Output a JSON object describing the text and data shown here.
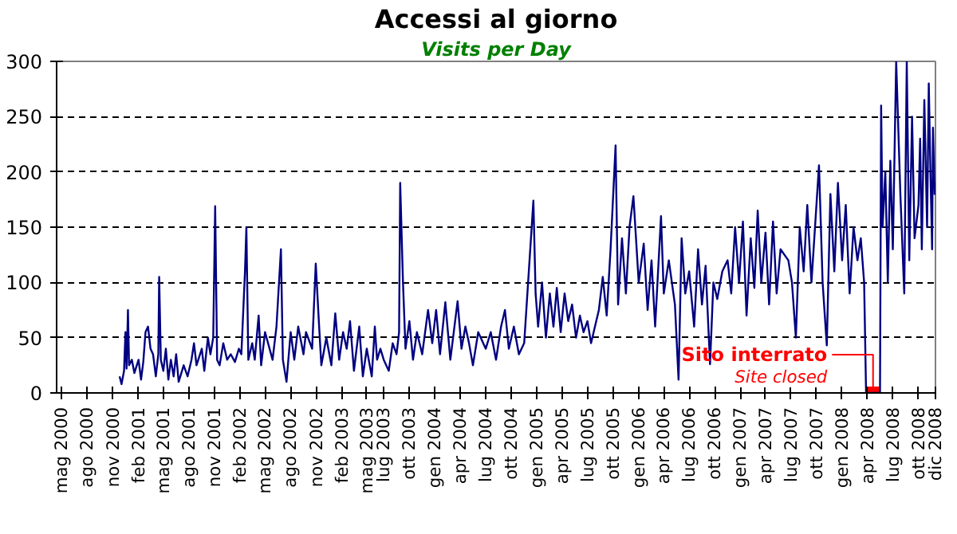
{
  "chart_data": {
    "type": "line",
    "title": "Accessi al giorno",
    "subtitle": "Visits per Day",
    "xlim": [
      "2000-04-13",
      "2008-12-01"
    ],
    "ylim": [
      0,
      300
    ],
    "yticks": [
      0,
      50,
      100,
      150,
      200,
      250,
      300
    ],
    "xticks": [
      {
        "value": "2000-05-01",
        "label": "mag 2000"
      },
      {
        "value": "2000-08-01",
        "label": "ago 2000"
      },
      {
        "value": "2000-11-01",
        "label": "nov 2000"
      },
      {
        "value": "2001-02-01",
        "label": "feb 2001"
      },
      {
        "value": "2001-05-01",
        "label": "mag 2001"
      },
      {
        "value": "2001-08-01",
        "label": "ago 2001"
      },
      {
        "value": "2001-11-01",
        "label": "nov 2001"
      },
      {
        "value": "2002-02-01",
        "label": "feb 2002"
      },
      {
        "value": "2002-05-01",
        "label": "mag 2002"
      },
      {
        "value": "2002-08-01",
        "label": "ago 2002"
      },
      {
        "value": "2002-11-01",
        "label": "nov 2002"
      },
      {
        "value": "2003-02-01",
        "label": "feb 2003"
      },
      {
        "value": "2003-05-01",
        "label": "mag 2003"
      },
      {
        "value": "2003-07-01",
        "label": "lug 2003"
      },
      {
        "value": "2003-10-01",
        "label": "ott 2003"
      },
      {
        "value": "2004-01-01",
        "label": "gen 2004"
      },
      {
        "value": "2004-04-01",
        "label": "apr 2004"
      },
      {
        "value": "2004-07-01",
        "label": "lug 2004"
      },
      {
        "value": "2004-10-01",
        "label": "ott 2004"
      },
      {
        "value": "2005-01-01",
        "label": "gen 2005"
      },
      {
        "value": "2005-04-01",
        "label": "apr 2005"
      },
      {
        "value": "2005-07-01",
        "label": "lug 2005"
      },
      {
        "value": "2005-10-01",
        "label": "ott 2005"
      },
      {
        "value": "2006-01-01",
        "label": "gen 2006"
      },
      {
        "value": "2006-04-01",
        "label": "apr 2006"
      },
      {
        "value": "2006-07-01",
        "label": "lug 2006"
      },
      {
        "value": "2006-10-01",
        "label": "ott 2006"
      },
      {
        "value": "2007-01-01",
        "label": "gen 2007"
      },
      {
        "value": "2007-04-01",
        "label": "apr 2007"
      },
      {
        "value": "2007-07-01",
        "label": "lug 2007"
      },
      {
        "value": "2007-10-01",
        "label": "ott 2007"
      },
      {
        "value": "2008-01-01",
        "label": "gen 2008"
      },
      {
        "value": "2008-04-01",
        "label": "apr 2008"
      },
      {
        "value": "2008-07-01",
        "label": "lug 2008"
      },
      {
        "value": "2008-10-01",
        "label": "ott 2008"
      },
      {
        "value": "2008-12-01",
        "label": "dic 2008"
      }
    ],
    "grid": "y",
    "line_style": "solid",
    "marker": "none",
    "series": [
      {
        "color": "#ff0000",
        "x": [
          "2008-03-27",
          "2008-05-16"
        ],
        "values": [
          0,
          0
        ]
      },
      {
        "color": "#000080",
        "x": [
          "2000-11-25",
          "2000-12-02",
          "2000-12-11",
          "2000-12-16",
          "2000-12-20",
          "2000-12-25",
          "2000-12-29",
          "2001-01-08",
          "2001-01-17",
          "2001-02-01",
          "2001-02-10",
          "2001-02-18",
          "2001-02-26",
          "2001-03-07",
          "2001-03-16",
          "2001-03-25",
          "2001-04-04",
          "2001-04-13",
          "2001-04-16",
          "2001-04-22",
          "2001-05-01",
          "2001-05-10",
          "2001-05-19",
          "2001-05-28",
          "2001-06-07",
          "2001-06-16",
          "2001-06-25",
          "2001-07-13",
          "2001-07-27",
          "2001-08-10",
          "2001-08-19",
          "2001-08-28",
          "2001-09-16",
          "2001-09-25",
          "2001-10-08",
          "2001-10-17",
          "2001-10-27",
          "2001-11-03",
          "2001-11-10",
          "2001-11-19",
          "2001-12-02",
          "2001-12-16",
          "2001-12-29",
          "2002-01-13",
          "2002-01-27",
          "2002-02-05",
          "2002-02-18",
          "2002-02-23",
          "2002-03-02",
          "2002-03-16",
          "2002-03-25",
          "2002-04-08",
          "2002-04-17",
          "2002-05-01",
          "2002-05-28",
          "2002-06-11",
          "2002-06-27",
          "2002-07-04",
          "2002-07-17",
          "2002-08-01",
          "2002-08-14",
          "2002-08-28",
          "2002-09-16",
          "2002-09-25",
          "2002-10-17",
          "2002-10-30",
          "2002-11-10",
          "2002-11-19",
          "2002-12-07",
          "2002-12-25",
          "2003-01-08",
          "2003-01-22",
          "2003-02-05",
          "2003-02-18",
          "2003-03-02",
          "2003-03-16",
          "2003-04-04",
          "2003-04-17",
          "2003-05-01",
          "2003-05-19",
          "2003-05-30",
          "2003-06-07",
          "2003-06-19",
          "2003-07-01",
          "2003-07-19",
          "2003-08-02",
          "2003-08-16",
          "2003-08-25",
          "2003-08-29",
          "2003-09-08",
          "2003-09-17",
          "2003-10-01",
          "2003-10-14",
          "2003-10-28",
          "2003-11-16",
          "2003-12-07",
          "2003-12-22",
          "2004-01-05",
          "2004-01-19",
          "2004-02-07",
          "2004-02-25",
          "2004-03-22",
          "2004-04-05",
          "2004-04-19",
          "2004-05-02",
          "2004-05-16",
          "2004-06-04",
          "2004-07-01",
          "2004-07-19",
          "2004-08-07",
          "2004-08-25",
          "2004-09-08",
          "2004-09-22",
          "2004-10-10",
          "2004-10-28",
          "2004-11-16",
          "2004-12-19",
          "2004-12-27",
          "2005-01-05",
          "2005-01-19",
          "2005-02-02",
          "2005-02-16",
          "2005-03-01",
          "2005-03-13",
          "2005-03-27",
          "2005-04-10",
          "2005-04-23",
          "2005-05-07",
          "2005-05-21",
          "2005-06-04",
          "2005-06-17",
          "2005-07-01",
          "2005-07-14",
          "2005-07-28",
          "2005-08-11",
          "2005-08-25",
          "2005-09-08",
          "2005-09-22",
          "2005-10-10",
          "2005-10-19",
          "2005-11-02",
          "2005-11-16",
          "2005-11-29",
          "2005-12-13",
          "2006-01-01",
          "2006-01-19",
          "2006-02-02",
          "2006-02-16",
          "2006-03-01",
          "2006-03-22",
          "2006-04-01",
          "2006-04-19",
          "2006-05-11",
          "2006-05-24",
          "2006-06-04",
          "2006-06-17",
          "2006-07-01",
          "2006-07-19",
          "2006-08-02",
          "2006-08-16",
          "2006-08-29",
          "2006-09-14",
          "2006-09-26",
          "2006-10-10",
          "2006-10-28",
          "2006-11-16",
          "2006-11-29",
          "2006-12-13",
          "2006-12-27",
          "2007-01-10",
          "2007-01-23",
          "2007-02-07",
          "2007-02-20",
          "2007-03-04",
          "2007-03-17",
          "2007-04-01",
          "2007-04-14",
          "2007-04-28",
          "2007-05-11",
          "2007-05-25",
          "2007-06-22",
          "2007-07-05",
          "2007-07-19",
          "2007-08-02",
          "2007-08-16",
          "2007-08-29",
          "2007-09-13",
          "2007-10-10",
          "2007-10-23",
          "2007-11-07",
          "2007-11-20",
          "2007-12-04",
          "2007-12-17",
          "2008-01-01",
          "2008-01-14",
          "2008-01-28",
          "2008-02-11",
          "2008-02-25",
          "2008-03-08",
          "2008-03-20",
          "2008-03-27",
          "2008-05-16",
          "2008-05-20",
          "2008-05-25",
          "2008-06-04",
          "2008-06-13",
          "2008-06-22",
          "2008-07-01",
          "2008-07-13",
          "2008-07-28",
          "2008-08-11",
          "2008-08-20",
          "2008-08-29",
          "2008-09-08",
          "2008-09-17",
          "2008-10-01",
          "2008-10-07",
          "2008-10-13",
          "2008-10-22",
          "2008-11-01",
          "2008-11-07",
          "2008-11-13",
          "2008-11-19",
          "2008-11-22",
          "2008-11-28",
          "2008-12-01"
        ],
        "values": [
          15,
          8,
          20,
          55,
          22,
          75,
          25,
          30,
          18,
          30,
          12,
          28,
          55,
          60,
          40,
          35,
          15,
          35,
          105,
          30,
          20,
          40,
          12,
          30,
          15,
          35,
          10,
          25,
          15,
          30,
          45,
          25,
          40,
          20,
          50,
          35,
          50,
          169,
          30,
          25,
          45,
          30,
          35,
          28,
          40,
          35,
          110,
          150,
          30,
          45,
          30,
          70,
          25,
          55,
          30,
          60,
          130,
          30,
          10,
          55,
          30,
          60,
          35,
          55,
          40,
          117,
          65,
          25,
          50,
          25,
          72,
          30,
          55,
          40,
          65,
          20,
          60,
          15,
          40,
          15,
          60,
          30,
          40,
          30,
          20,
          45,
          35,
          55,
          190,
          100,
          40,
          65,
          30,
          55,
          35,
          75,
          45,
          75,
          35,
          82,
          30,
          83,
          40,
          60,
          45,
          25,
          55,
          40,
          55,
          30,
          60,
          75,
          40,
          60,
          35,
          45,
          174,
          90,
          60,
          100,
          50,
          90,
          60,
          95,
          55,
          90,
          65,
          80,
          50,
          70,
          55,
          65,
          45,
          60,
          75,
          105,
          70,
          130,
          224,
          80,
          140,
          90,
          150,
          178,
          100,
          135,
          75,
          120,
          60,
          160,
          90,
          120,
          80,
          12,
          140,
          90,
          110,
          60,
          130,
          80,
          115,
          26,
          100,
          85,
          110,
          120,
          90,
          150,
          100,
          155,
          70,
          140,
          95,
          165,
          100,
          145,
          80,
          155,
          90,
          130,
          120,
          100,
          50,
          150,
          110,
          170,
          100,
          206,
          100,
          43,
          180,
          110,
          190,
          120,
          170,
          90,
          150,
          120,
          140,
          100,
          0,
          0,
          260,
          150,
          200,
          100,
          210,
          130,
          300,
          180,
          90,
          300,
          120,
          250,
          140,
          170,
          230,
          130,
          265,
          150,
          280,
          200,
          130,
          240,
          180,
          190
        ]
      }
    ],
    "annotations": [
      {
        "text": "Sito interrato",
        "x": "2008-04-21",
        "y": 0
      },
      "Site closed"
    ]
  }
}
